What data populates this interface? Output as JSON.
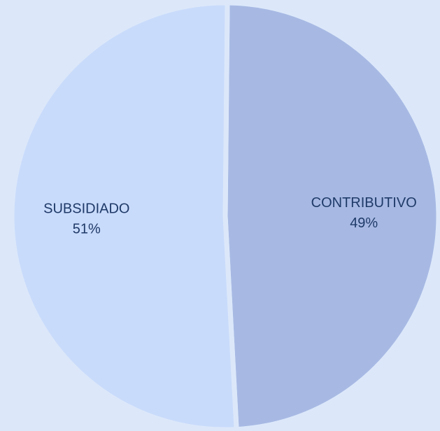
{
  "chart_data": {
    "type": "pie",
    "categories": [
      "CONTRIBUTIVO",
      "SUBSIDIADO"
    ],
    "values": [
      49,
      51
    ],
    "value_labels": [
      "49%",
      "51%"
    ],
    "colors": [
      "#a7b9e3",
      "#c9dbfb"
    ]
  }
}
